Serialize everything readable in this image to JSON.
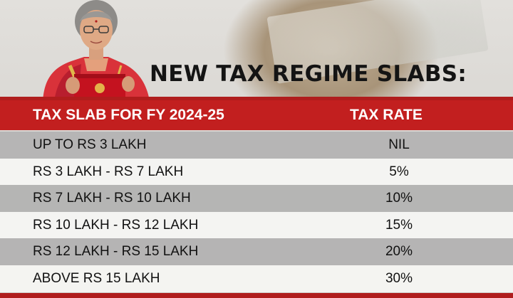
{
  "title": "NEW TAX REGIME SLABS:",
  "colors": {
    "accent_red": "#c21f1f",
    "row_dark": "#b0b0b0",
    "row_light": "#f6f6f4"
  },
  "table": {
    "headers": {
      "slab": "TAX SLAB FOR FY 2024-25",
      "rate": "TAX RATE"
    },
    "rows": [
      {
        "slab": "UP TO RS 3 LAKH",
        "rate": "NIL"
      },
      {
        "slab": "RS 3 LAKH - RS 7 LAKH",
        "rate": "5%"
      },
      {
        "slab": "RS 7 LAKH - RS 10 LAKH",
        "rate": "10%"
      },
      {
        "slab": "RS 10 LAKH - RS 12 LAKH",
        "rate": "15%"
      },
      {
        "slab": "RS 12 LAKH - RS 15 LAKH",
        "rate": "20%"
      },
      {
        "slab": "ABOVE RS 15 LAKH",
        "rate": "30%"
      }
    ]
  }
}
